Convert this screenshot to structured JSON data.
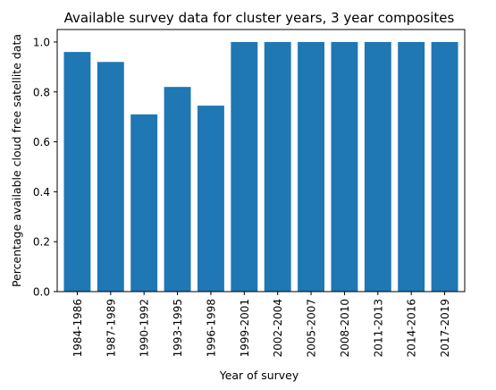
{
  "chart_data": {
    "type": "bar",
    "title": "Available survey data for cluster years, 3 year composites",
    "xlabel": "Year of survey",
    "ylabel": "Percentage available cloud free satellite data",
    "categories": [
      "1984-1986",
      "1987-1989",
      "1990-1992",
      "1993-1995",
      "1996-1998",
      "1999-2001",
      "2002-2004",
      "2005-2007",
      "2008-2010",
      "2011-2013",
      "2014-2016",
      "2017-2019"
    ],
    "values": [
      0.96,
      0.92,
      0.71,
      0.82,
      0.745,
      1.0,
      1.0,
      1.0,
      1.0,
      1.0,
      1.0,
      1.0
    ],
    "ylim": [
      0,
      1.05
    ],
    "yticks": [
      0.0,
      0.2,
      0.4,
      0.6,
      0.8,
      1.0
    ],
    "ytick_labels": [
      "0.0",
      "0.2",
      "0.4",
      "0.6",
      "0.8",
      "1.0"
    ],
    "grid": false,
    "bar_color": "#1f77b4"
  }
}
